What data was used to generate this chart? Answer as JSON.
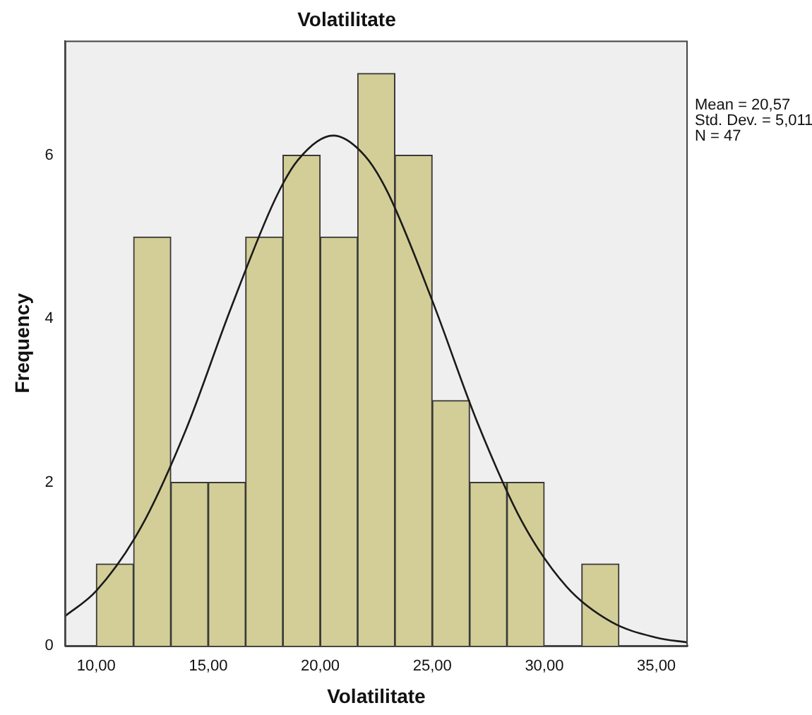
{
  "chart_data": {
    "type": "histogram",
    "title": "Volatilitate",
    "xlabel": "Volatilitate",
    "ylabel": "Frequency",
    "bins": [
      10,
      11.67,
      13.33,
      15,
      16.67,
      18.33,
      20,
      21.67,
      23.33,
      25,
      26.67,
      28.33,
      30,
      31.67,
      33.33
    ],
    "values": [
      1,
      5,
      2,
      2,
      5,
      6,
      5,
      7,
      6,
      3,
      2,
      2,
      0,
      1
    ],
    "color": "#d3ce97",
    "series": [
      {
        "type": "line",
        "color": "#1a1a1a",
        "x": [
          8.6,
          10,
          12,
          14,
          16,
          18,
          19,
          20.57,
          22,
          23,
          25,
          27,
          29,
          31,
          33,
          35,
          36.4
        ],
        "values": [
          0.36,
          0.67,
          1.45,
          2.64,
          4.12,
          5.47,
          5.94,
          6.24,
          5.99,
          5.55,
          4.22,
          2.74,
          1.52,
          0.72,
          0.29,
          0.1,
          0.04
        ]
      }
    ],
    "xlim": [
      8.6,
      36.4
    ],
    "xticks": [
      {
        "value": 10,
        "label": "10,00"
      },
      {
        "value": 15,
        "label": "15,00"
      },
      {
        "value": 20,
        "label": "20,00"
      },
      {
        "value": 25,
        "label": "25,00"
      },
      {
        "value": 30,
        "label": "30,00"
      },
      {
        "value": 35,
        "label": "35,00"
      }
    ],
    "ylim": [
      0,
      7.4
    ],
    "yticks": [
      0,
      2,
      4,
      6
    ],
    "grid": false,
    "legend": false,
    "annotations": [
      "Mean = 20,57",
      "Std. Dev. = 5,011",
      "N = 47"
    ]
  }
}
